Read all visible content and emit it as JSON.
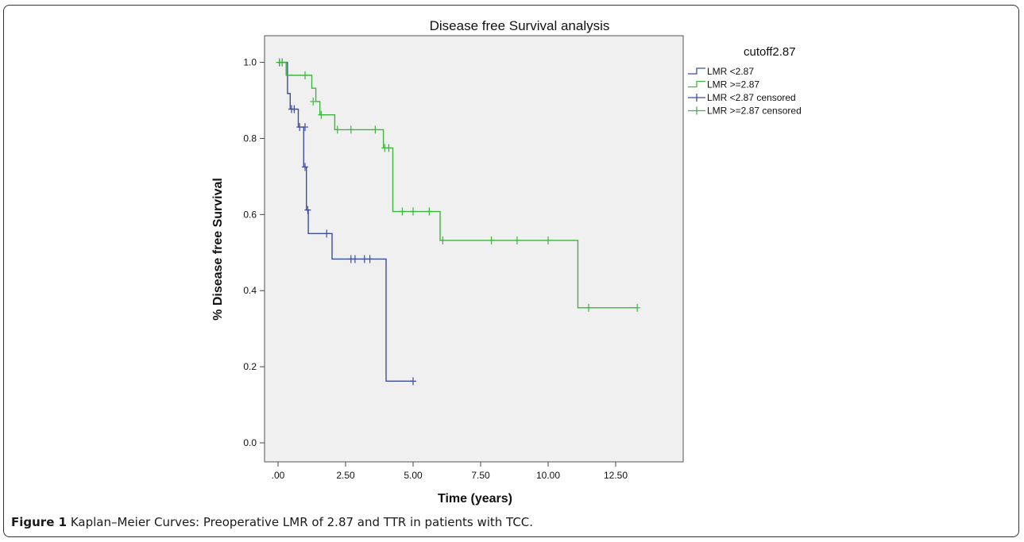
{
  "caption": {
    "label": "Figure 1",
    "text": "Kaplan–Meier Curves: Preoperative LMR of 2.87 and TTR in patients with TCC."
  },
  "chart_data": {
    "type": "line",
    "subtype": "kaplan-meier",
    "title": "Disease free Survival analysis",
    "xlabel": "Time (years)",
    "ylabel": "% Disease free Survival",
    "xlim": [
      -0.5,
      15.0
    ],
    "ylim": [
      -0.05,
      1.07
    ],
    "xticks": [
      0,
      2.5,
      5,
      7.5,
      10,
      12.5
    ],
    "xtick_labels": [
      ".00",
      "2.50",
      "5.00",
      "7.50",
      "10.00",
      "12.50"
    ],
    "yticks": [
      0,
      0.2,
      0.4,
      0.6,
      0.8,
      1.0
    ],
    "ytick_labels": [
      "0.0",
      "0.2",
      "0.4",
      "0.6",
      "0.8",
      "1.0"
    ],
    "grid": false,
    "plot_background": "#f0f0f0",
    "legend": {
      "title": "cutoff2.87",
      "position": "right",
      "entries": [
        {
          "label": "LMR <2.87",
          "color": "#3b4ea0",
          "marker": "step"
        },
        {
          "label": "LMR >=2.87",
          "color": "#3fb53f",
          "marker": "step"
        },
        {
          "label": "LMR <2.87 censored",
          "color": "#3b4ea0",
          "marker": "cross"
        },
        {
          "label": "LMR >=2.87 censored",
          "color": "#3fb53f",
          "marker": "cross"
        }
      ]
    },
    "series": [
      {
        "name": "LMR <2.87",
        "color": "#3b4ea0",
        "steps": [
          [
            0,
            1.0
          ],
          [
            0.35,
            0.918
          ],
          [
            0.45,
            0.877
          ],
          [
            0.75,
            0.83
          ],
          [
            0.95,
            0.725
          ],
          [
            1.05,
            0.612
          ],
          [
            1.12,
            0.55
          ],
          [
            2.0,
            0.483
          ],
          [
            4.0,
            0.162
          ]
        ],
        "end": 5.0,
        "censored": [
          [
            0.05,
            1.0
          ],
          [
            0.15,
            1.0
          ],
          [
            0.5,
            0.877
          ],
          [
            0.6,
            0.877
          ],
          [
            0.8,
            0.83
          ],
          [
            1.0,
            0.83
          ],
          [
            1.0,
            0.725
          ],
          [
            1.1,
            0.612
          ],
          [
            1.8,
            0.55
          ],
          [
            2.7,
            0.483
          ],
          [
            2.85,
            0.483
          ],
          [
            3.2,
            0.483
          ],
          [
            3.4,
            0.483
          ],
          [
            5.0,
            0.162
          ]
        ]
      },
      {
        "name": "LMR >=2.87",
        "color": "#3fb53f",
        "steps": [
          [
            0,
            1.0
          ],
          [
            0.3,
            0.966
          ],
          [
            1.25,
            0.932
          ],
          [
            1.4,
            0.897
          ],
          [
            1.55,
            0.862
          ],
          [
            2.1,
            0.823
          ],
          [
            3.9,
            0.775
          ],
          [
            4.25,
            0.608
          ],
          [
            6.0,
            0.532
          ],
          [
            11.1,
            0.355
          ]
        ],
        "end": 13.3,
        "censored": [
          [
            0.05,
            1.0
          ],
          [
            0.15,
            1.0
          ],
          [
            1.0,
            0.966
          ],
          [
            1.3,
            0.897
          ],
          [
            1.6,
            0.862
          ],
          [
            2.2,
            0.823
          ],
          [
            2.7,
            0.823
          ],
          [
            3.6,
            0.823
          ],
          [
            3.95,
            0.775
          ],
          [
            4.1,
            0.775
          ],
          [
            4.6,
            0.608
          ],
          [
            5.0,
            0.608
          ],
          [
            5.6,
            0.608
          ],
          [
            6.1,
            0.532
          ],
          [
            7.9,
            0.532
          ],
          [
            8.85,
            0.532
          ],
          [
            10.0,
            0.532
          ],
          [
            11.5,
            0.355
          ],
          [
            13.3,
            0.355
          ]
        ]
      }
    ]
  }
}
